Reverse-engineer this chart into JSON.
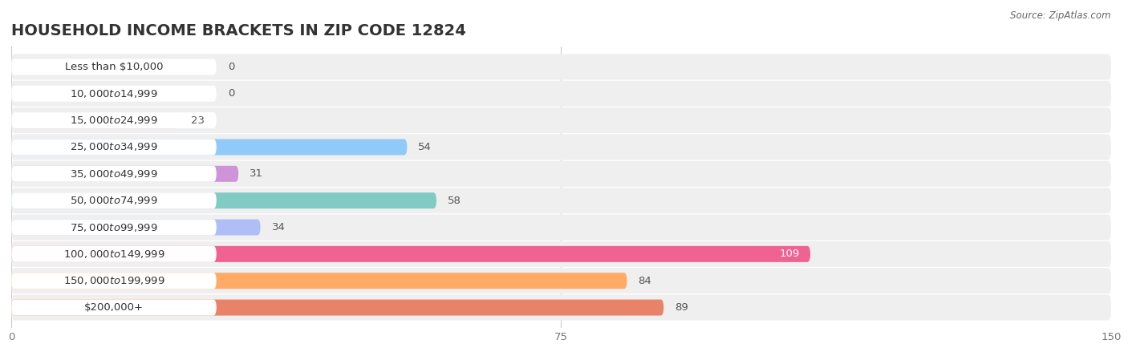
{
  "title": "HOUSEHOLD INCOME BRACKETS IN ZIP CODE 12824",
  "source": "Source: ZipAtlas.com",
  "categories": [
    "Less than $10,000",
    "$10,000 to $14,999",
    "$15,000 to $24,999",
    "$25,000 to $34,999",
    "$35,000 to $49,999",
    "$50,000 to $74,999",
    "$75,000 to $99,999",
    "$100,000 to $149,999",
    "$150,000 to $199,999",
    "$200,000+"
  ],
  "values": [
    0,
    0,
    23,
    54,
    31,
    58,
    34,
    109,
    84,
    89
  ],
  "colors": [
    "#F48FB1",
    "#FFCC99",
    "#F4A99A",
    "#90CAF9",
    "#CE93D8",
    "#80CBC4",
    "#B0BEF8",
    "#F06292",
    "#FFAB66",
    "#E8836A"
  ],
  "xlim": [
    0,
    150
  ],
  "xticks": [
    0,
    75,
    150
  ],
  "background_color": "#ffffff",
  "bar_bg_color": "#efefef",
  "row_bg_color": "#f9f9f9",
  "label_pill_color": "#ffffff",
  "title_fontsize": 14,
  "label_fontsize": 9.5,
  "value_fontsize": 9.5
}
